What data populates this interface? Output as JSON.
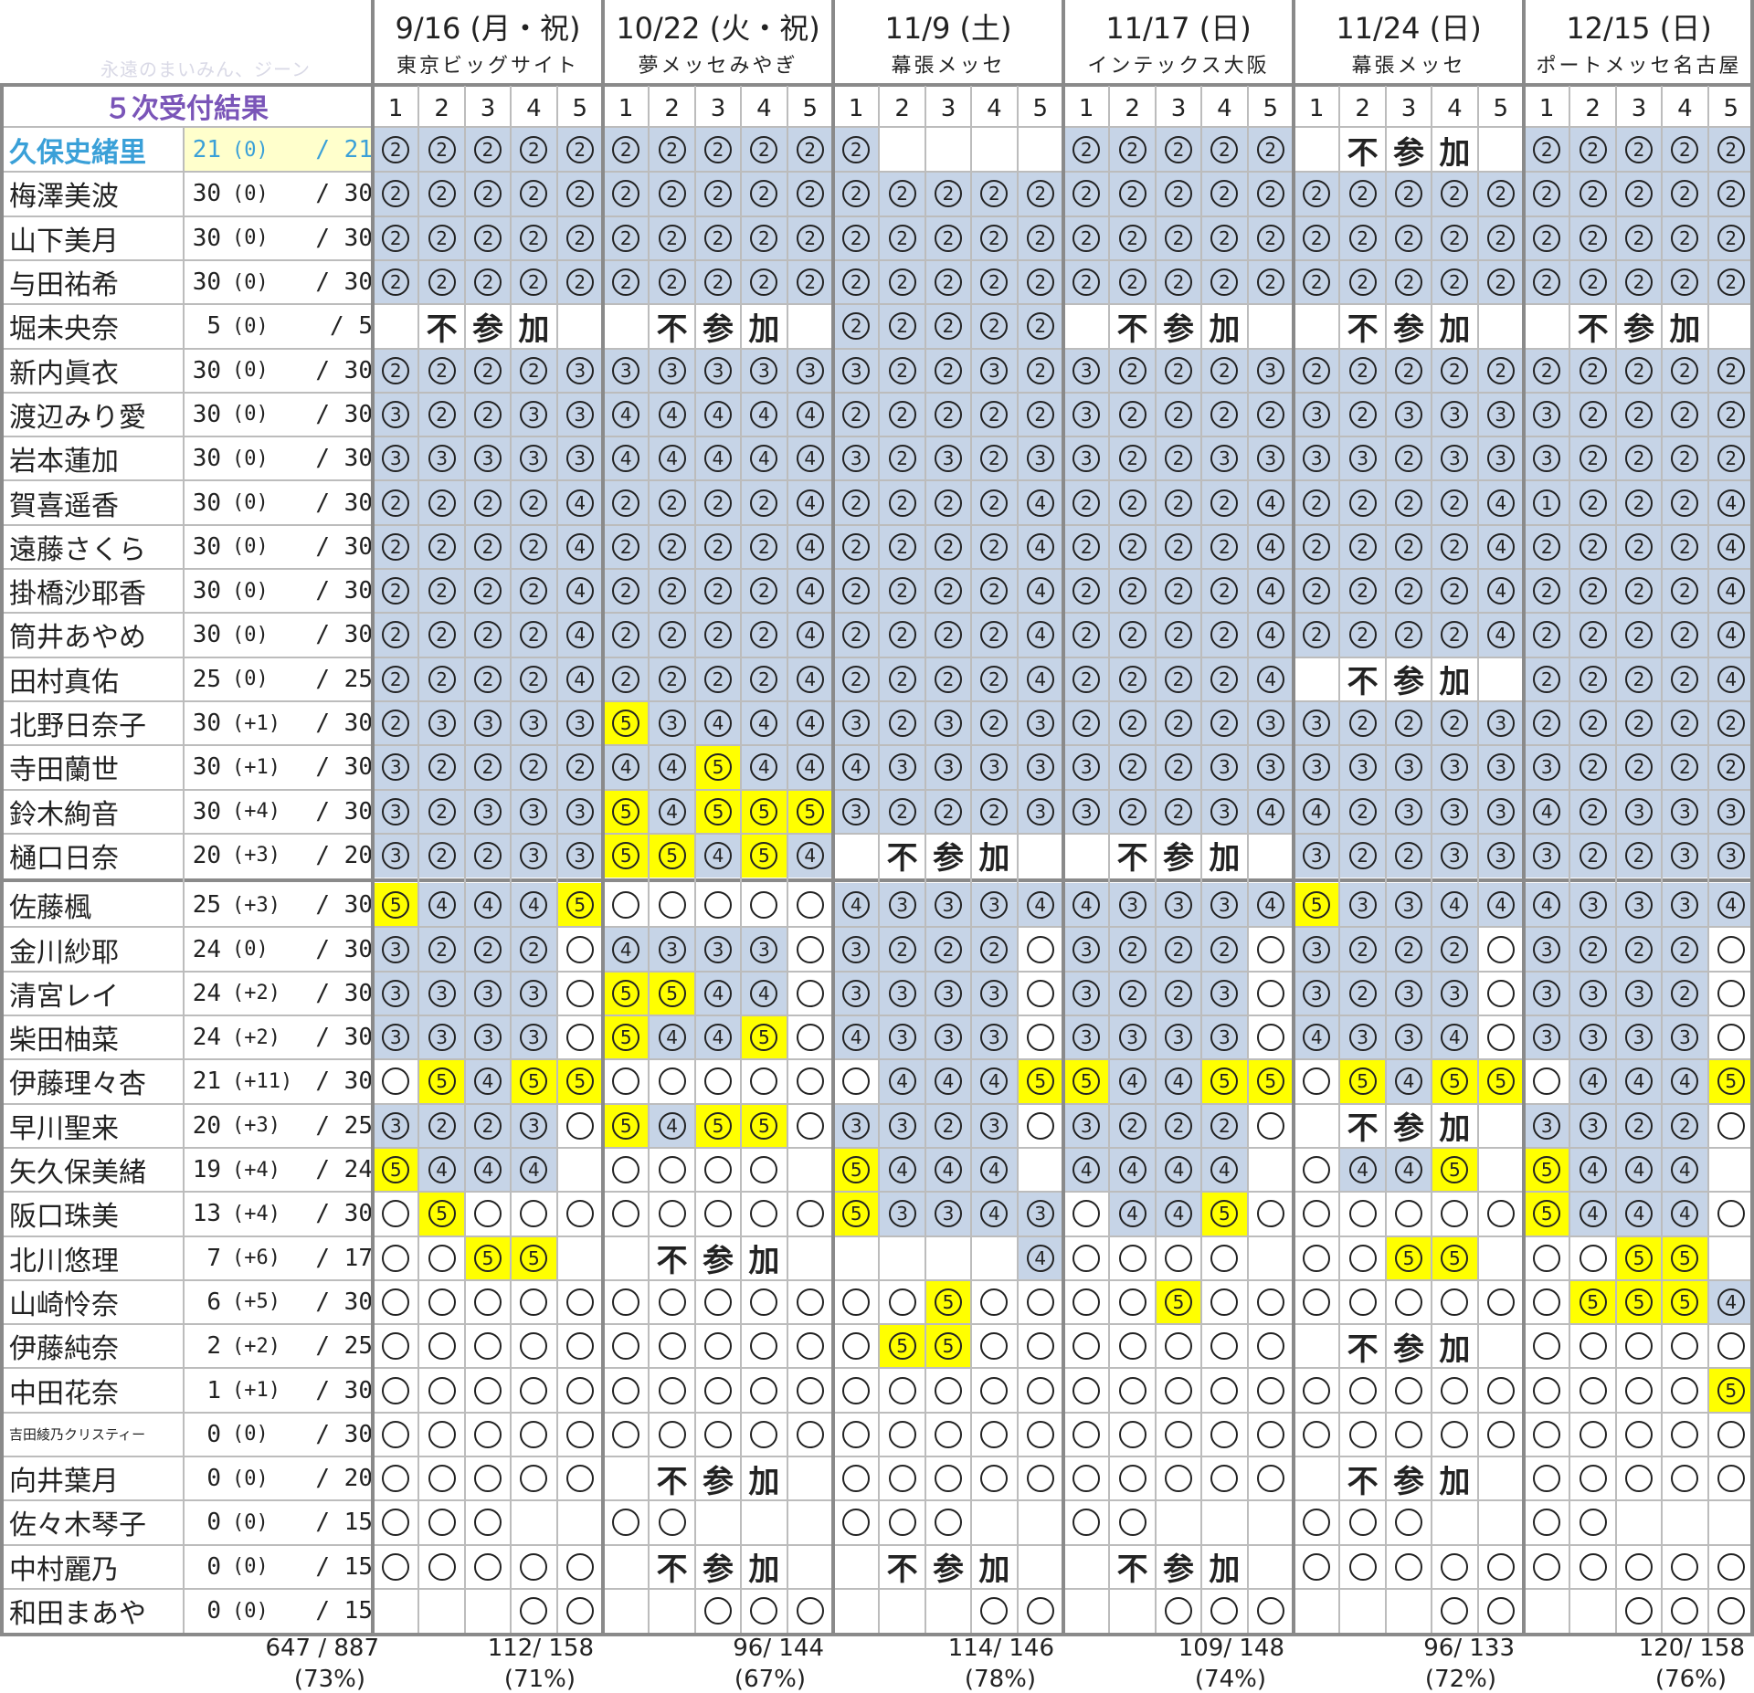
{
  "header": {
    "watermark": "永遠のまいみん、ジーン",
    "title": "５次受付結果"
  },
  "venues": [
    {
      "date": "9/16 (月・祝)",
      "place": "東京ビッグサイト",
      "total": "112/ 158",
      "pct": "(71%)"
    },
    {
      "date": "10/22 (火・祝)",
      "place": "夢メッセみやぎ",
      "total": "96/ 144",
      "pct": "(67%)"
    },
    {
      "date": "11/9 (土)",
      "place": "幕張メッセ",
      "total": "114/ 146",
      "pct": "(78%)"
    },
    {
      "date": "11/17 (日)",
      "place": "インテックス大阪",
      "total": "109/ 148",
      "pct": "(74%)"
    },
    {
      "date": "11/24 (日)",
      "place": "幕張メッセ",
      "total": "96/ 133",
      "pct": "(72%)"
    },
    {
      "date": "12/15 (日)",
      "place": "ポートメッセ名古屋",
      "total": "120/ 158",
      "pct": "(76%)"
    }
  ],
  "col_numbers": [
    "1",
    "2",
    "3",
    "4",
    "5"
  ],
  "not_attending": [
    "不",
    "参",
    "加"
  ],
  "grand_total": {
    "value": "647 / 887",
    "pct": "(73%)"
  },
  "members": [
    {
      "name": "久保史緒里",
      "count": "21",
      "delta": "(0)",
      "max": "21",
      "highlight": true,
      "cells": "22222 22222 2.... 22222 .F.F. 22222"
    },
    {
      "name": "梅澤美波",
      "count": "30",
      "delta": "(0)",
      "max": "30",
      "cells": "22222 22222 22222 22222 22222 22222"
    },
    {
      "name": "山下美月",
      "count": "30",
      "delta": "(0)",
      "max": "30",
      "cells": "22222 22222 22222 22222 22222 22222"
    },
    {
      "name": "与田祐希",
      "count": "30",
      "delta": "(0)",
      "max": "30",
      "cells": "22222 22222 22222 22222 22222 22222"
    },
    {
      "name": "堀未央奈",
      "count": "5",
      "delta": "(0)",
      "max": "5",
      "cells": "FFFFF FFFFF 22222 FFFFF FFFFF FFFFF"
    },
    {
      "name": "新内眞衣",
      "count": "30",
      "delta": "(0)",
      "max": "30",
      "cells": "22223 33333 32232 32223 22222 22222"
    },
    {
      "name": "渡辺みり愛",
      "count": "30",
      "delta": "(0)",
      "max": "30",
      "cells": "32233 44444 22222 32222 32333 32222"
    },
    {
      "name": "岩本蓮加",
      "count": "30",
      "delta": "(0)",
      "max": "30",
      "cells": "33333 44444 32323 32233 33233 32222"
    },
    {
      "name": "賀喜遥香",
      "count": "30",
      "delta": "(0)",
      "max": "30",
      "cells": "22224 22224 22224 22224 22224 12224"
    },
    {
      "name": "遠藤さくら",
      "count": "30",
      "delta": "(0)",
      "max": "30",
      "cells": "22224 22224 22224 22224 22224 22224"
    },
    {
      "name": "掛橋沙耶香",
      "count": "30",
      "delta": "(0)",
      "max": "30",
      "cells": "22224 22224 22224 22224 22224 22224"
    },
    {
      "name": "筒井あやめ",
      "count": "30",
      "delta": "(0)",
      "max": "30",
      "cells": "22224 22224 22224 22224 22224 22224"
    },
    {
      "name": "田村真佑",
      "count": "25",
      "delta": "(0)",
      "max": "25",
      "cells": "22224 22224 22224 22224 FFFFF 22224"
    },
    {
      "name": "北野日奈子",
      "count": "30",
      "delta": "(+1)",
      "max": "30",
      "cells": "23333 Y3444 32323 22223 32223 22222"
    },
    {
      "name": "寺田蘭世",
      "count": "30",
      "delta": "(+1)",
      "max": "30",
      "cells": "32222 44Y44 43333 32233 33333 32222"
    },
    {
      "name": "鈴木絢音",
      "count": "30",
      "delta": "(+4)",
      "max": "30",
      "cells": "32333 Y4YYY 32223 32234 42333 42333"
    },
    {
      "name": "樋口日奈",
      "count": "20",
      "delta": "(+3)",
      "max": "20",
      "cells": "32233 YY4Y4 FFFFF FFFFF 32233 32233"
    },
    {
      "name": "佐藤楓",
      "count": "25",
      "delta": "(+3)",
      "max": "30",
      "sep": true,
      "cells": "Y444Y ooooo 43334 43334 Y3344 43334"
    },
    {
      "name": "金川紗耶",
      "count": "24",
      "delta": "(0)",
      "max": "30",
      "cells": "3222o 4333o 3222o 3222o 3222o 3222o"
    },
    {
      "name": "清宮レイ",
      "count": "24",
      "delta": "(+2)",
      "max": "30",
      "cells": "3333o YY44o 3333o 3223o 3233o 3332o"
    },
    {
      "name": "柴田柚菜",
      "count": "24",
      "delta": "(+2)",
      "max": "30",
      "cells": "3333o Y44Yo 4333o 3333o 4334o 3333o"
    },
    {
      "name": "伊藤理々杏",
      "count": "21",
      "delta": "(+11)",
      "max": "30",
      "cells": "oY4YY ooooo o444Y Y44YY oY4YY o444Y"
    },
    {
      "name": "早川聖来",
      "count": "20",
      "delta": "(+3)",
      "max": "25",
      "cells": "3223o Y4YYo 3323o 3222o FFFFF 3322o"
    },
    {
      "name": "矢久保美緒",
      "count": "19",
      "delta": "(+4)",
      "max": "24",
      "cells": "Y444. oooo. Y444. 4444. o44Y. Y444."
    },
    {
      "name": "阪口珠美",
      "count": "13",
      "delta": "(+4)",
      "max": "30",
      "cells": "oYooo ooooo Y3343 o44Yo ooooo Y444o"
    },
    {
      "name": "北川悠理",
      "count": "7",
      "delta": "(+6)",
      "max": "17",
      "cells": "ooYY. FFFFF ....4 oooo. ooYY. ooYY."
    },
    {
      "name": "山崎怜奈",
      "count": "6",
      "delta": "(+5)",
      "max": "30",
      "cells": "ooooo ooooo ooYoo ooYoo ooooo oYYY4"
    },
    {
      "name": "伊藤純奈",
      "count": "2",
      "delta": "(+2)",
      "max": "25",
      "cells": "ooooo ooooo oYYoo ooooo FFFFF ooooo"
    },
    {
      "name": "中田花奈",
      "count": "1",
      "delta": "(+1)",
      "max": "30",
      "cells": "ooooo ooooo ooooo ooooo ooooo ooooY"
    },
    {
      "name": "吉田綾乃クリスティー",
      "count": "0",
      "delta": "(0)",
      "max": "30",
      "small": true,
      "cells": "ooooo ooooo ooooo ooooo ooooo ooooo"
    },
    {
      "name": "向井葉月",
      "count": "0",
      "delta": "(0)",
      "max": "20",
      "cells": "ooooo FFFFF ooooo ooooo FFFFF ooooo"
    },
    {
      "name": "佐々木琴子",
      "count": "0",
      "delta": "(0)",
      "max": "15",
      "cells": "ooo.. oo... ooo.. oo... ooo.. oo..."
    },
    {
      "name": "中村麗乃",
      "count": "0",
      "delta": "(0)",
      "max": "15",
      "cells": "ooooo FFFFF FFFFF FFFFF ooooo ooooo"
    },
    {
      "name": "和田まあや",
      "count": "0",
      "delta": "(0)",
      "max": "15",
      "cells": "...oo ..ooo ...oo ..ooo ...oo ..ooo"
    }
  ]
}
